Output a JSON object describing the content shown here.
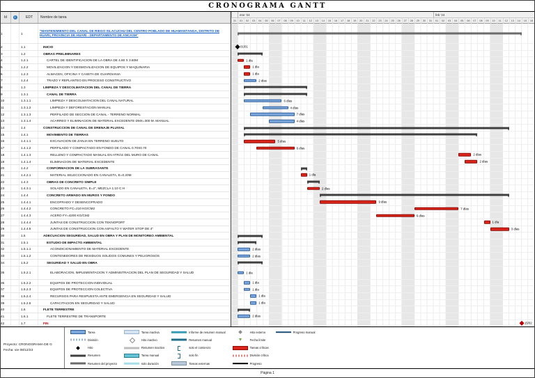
{
  "title": "CRONOGRAMA GANTT",
  "table": {
    "columns": {
      "id": "Id",
      "edt": "EDT",
      "name": "Nombre de tarea"
    }
  },
  "chart_data": {
    "type": "gantt",
    "title": "CRONOGRAMA GANTT",
    "timeline": {
      "total_days": 48,
      "months": [
        {
          "label": "",
          "start": 0,
          "span": 1
        },
        {
          "label": "ene '24",
          "start": 1,
          "span": 31
        },
        {
          "label": "feb '24",
          "start": 32,
          "span": 16
        }
      ],
      "day_numbers": [
        "31",
        "01",
        "02",
        "03",
        "04",
        "05",
        "06",
        "07",
        "08",
        "09",
        "10",
        "11",
        "12",
        "13",
        "14",
        "15",
        "16",
        "17",
        "18",
        "19",
        "20",
        "21",
        "22",
        "23",
        "24",
        "25",
        "26",
        "27",
        "28",
        "29",
        "30",
        "31",
        "01",
        "02",
        "03",
        "04",
        "05",
        "06",
        "07",
        "08",
        "09",
        "10",
        "11",
        "12",
        "13",
        "14",
        "15",
        "16"
      ]
    },
    "colors": {
      "task": "#7ba7dc",
      "critical": "#dc241a",
      "summary": "#3f3f3f",
      "project": "#6b6b6b",
      "milestone": "#000000",
      "critical_milestone": "#c00000",
      "weekend": "#e7e7e7"
    },
    "tasks": [
      {
        "id": 1,
        "edt": "1",
        "name": "\"MANTENIMIENTO DEL CANAL DE RIEGO ISLACUCHU DEL CENTRO POBLADO DE HUAMANTANGA, DISTRITO DE HUARI, PROVINCIA DE HUARI - DEPARTAMENTO DE ANCASH\"",
        "type": "project",
        "level": 0,
        "start": 1,
        "dur": 45,
        "label": "",
        "lines": 3
      },
      {
        "id": 2,
        "edt": "1.1",
        "name": "INICIO",
        "type": "milestone",
        "level": 1,
        "start": 1,
        "dur": 0,
        "label": "01/01"
      },
      {
        "id": 3,
        "edt": "1.2",
        "name": "OBRAS PRELIMINARES",
        "type": "summary",
        "level": 1,
        "start": 1,
        "dur": 4,
        "label": ""
      },
      {
        "id": 4,
        "edt": "1.2.1",
        "name": "CARTEL DE IDENTIFICACION DE LA OBRA DE 4.80 X 3.60M",
        "type": "critical",
        "level": 2,
        "start": 1,
        "dur": 1,
        "label": "1 día"
      },
      {
        "id": 5,
        "edt": "1.2.2",
        "name": "MOVILIZACION Y DESMOVILIZACION DE EQUIPOS Y MAQUINARIA",
        "type": "critical",
        "level": 2,
        "start": 2,
        "dur": 1,
        "label": "1 día"
      },
      {
        "id": 6,
        "edt": "1.2.3",
        "name": "ALMACEN, OFICINA Y CASETA DE GUARDIANIA",
        "type": "critical",
        "level": 2,
        "start": 2,
        "dur": 1,
        "label": "1 día"
      },
      {
        "id": 7,
        "edt": "1.2.4",
        "name": "TRAZO Y REPLANTEO EN PROCESO CONSTRUCTIVO",
        "type": "task",
        "level": 2,
        "start": 2,
        "dur": 2,
        "label": "2 días"
      },
      {
        "id": 8,
        "edt": "1.3",
        "name": "LIMPIEZA Y DESCOLMATACION DEL CANAL DE TIERRA",
        "type": "summary",
        "level": 1,
        "start": 2,
        "dur": 10,
        "label": ""
      },
      {
        "id": 9,
        "edt": "1.3.1",
        "name": "CANAL DE TIERRA",
        "type": "summary",
        "level": 2,
        "start": 2,
        "dur": 10,
        "label": ""
      },
      {
        "id": 10,
        "edt": "1.3.1.1",
        "name": "LIMPIEZA Y DESCOLMATACION DEL CANAL NATURAL",
        "type": "task",
        "level": 3,
        "start": 2,
        "dur": 6,
        "label": "6 días"
      },
      {
        "id": 11,
        "edt": "1.3.1.2",
        "name": "LIMPIEZA Y DEFORESTACION MANUAL",
        "type": "task",
        "level": 3,
        "start": 5,
        "dur": 4,
        "label": "4 días"
      },
      {
        "id": 12,
        "edt": "1.3.1.3",
        "name": "PERFILADO DE SECCION DE CANAL - TERRENO NORMAL",
        "type": "task",
        "level": 3,
        "start": 3,
        "dur": 7,
        "label": "7 días"
      },
      {
        "id": 13,
        "edt": "1.3.1.4",
        "name": "ACARREO Y ELIMINACION DE MATERIAL EXCEDENTE DMX=300 M. MANUAL",
        "type": "task",
        "level": 3,
        "start": 6,
        "dur": 4,
        "label": "4 días"
      },
      {
        "id": 14,
        "edt": "1.4",
        "name": "CONSTRUCCION DE CANAL DE DRENAJE PLUVIAL",
        "type": "summary",
        "level": 1,
        "start": 2,
        "dur": 42,
        "label": ""
      },
      {
        "id": 15,
        "edt": "1.4.1",
        "name": "MOVIMIENTO DE TIERRAS",
        "type": "summary",
        "level": 2,
        "start": 2,
        "dur": 37,
        "label": ""
      },
      {
        "id": 16,
        "edt": "1.4.1.1",
        "name": "EXCAVACION DE ZANJA EN TERRENO SUELTO",
        "type": "critical",
        "level": 3,
        "start": 2,
        "dur": 5,
        "label": "5 días"
      },
      {
        "id": 17,
        "edt": "1.4.1.2",
        "name": "PERFILADO Y COMPACTADO EN FONDO DE CANAL 0.70X0.70",
        "type": "critical",
        "level": 3,
        "start": 4,
        "dur": 6,
        "label": "6 días"
      },
      {
        "id": 18,
        "edt": "1.4.1.3",
        "name": "RELLENO Y COMPACTADO MANUAL EN ATRÁS DEL MURO DE CANAL",
        "type": "critical",
        "level": 3,
        "start": 36,
        "dur": 2,
        "label": "2 días"
      },
      {
        "id": 19,
        "edt": "1.4.1.4",
        "name": "ELIMINACION DE MATERIAL EXCEDENTE",
        "type": "critical",
        "level": 3,
        "start": 37,
        "dur": 2,
        "label": "2 días"
      },
      {
        "id": 20,
        "edt": "1.4.2",
        "name": "CONFORMACION DE LA SUBRASANTE",
        "type": "summary",
        "level": 2,
        "start": 11,
        "dur": 1,
        "label": ""
      },
      {
        "id": 21,
        "edt": "1.4.2.1",
        "name": "MATERIAL SELECCIONADO EN CANALETA, E=0.20M",
        "type": "critical",
        "level": 3,
        "start": 11,
        "dur": 1,
        "label": "1 día"
      },
      {
        "id": 22,
        "edt": "1.4.3",
        "name": "OBRAS DE CONCRETO SIMPLE",
        "type": "summary",
        "level": 2,
        "start": 12,
        "dur": 2,
        "label": ""
      },
      {
        "id": 23,
        "edt": "1.4.3.1",
        "name": "SOLADO EN CANALETA, E=2\", MEZCLA 1:10 C:H",
        "type": "critical",
        "level": 3,
        "start": 12,
        "dur": 2,
        "label": "2 días"
      },
      {
        "id": 24,
        "edt": "1.4.4",
        "name": "CONCRETO ARMADO EN MUROS Y FONDO",
        "type": "summary",
        "level": 2,
        "start": 14,
        "dur": 30,
        "label": ""
      },
      {
        "id": 25,
        "edt": "1.4.4.1",
        "name": "ENCOFRADO Y DESENCOFRADO",
        "type": "critical",
        "level": 3,
        "start": 14,
        "dur": 9,
        "label": "9 días"
      },
      {
        "id": 26,
        "edt": "1.4.4.2",
        "name": "CONCRETO FC=210 KG/CM2",
        "type": "critical",
        "level": 3,
        "start": 29,
        "dur": 7,
        "label": "7 días"
      },
      {
        "id": 27,
        "edt": "1.4.4.3",
        "name": "ACERO FY=4200 KG/CM2",
        "type": "critical",
        "level": 3,
        "start": 23,
        "dur": 6,
        "label": "6 días"
      },
      {
        "id": 28,
        "edt": "1.4.4.4",
        "name": "JUNTAS DE CONSTRUCCION CON TEKNOPORT",
        "type": "critical",
        "level": 3,
        "start": 40,
        "dur": 1,
        "label": "1 día"
      },
      {
        "id": 29,
        "edt": "1.4.4.5",
        "name": "JUNTAS DE CONSTRUCCION CON ASFALTO Y WATER STOP DE 4\"",
        "type": "critical",
        "level": 3,
        "start": 41,
        "dur": 3,
        "label": "3 días"
      },
      {
        "id": 30,
        "edt": "1.5",
        "name": "ADECUACION SEGURIDAD, SALUD EN OBRA Y PLAN DE MONITOREO AMBIENTAL",
        "type": "summary",
        "level": 1,
        "start": 1,
        "dur": 4,
        "label": ""
      },
      {
        "id": 31,
        "edt": "1.5.1",
        "name": "ESTUDIO DE IMPACTO AMBIENTAL",
        "type": "summary",
        "level": 2,
        "start": 1,
        "dur": 3,
        "label": ""
      },
      {
        "id": 32,
        "edt": "1.5.1.1",
        "name": "ACONDICIONAMIENTO DE MATERIAL EXCEDENTE",
        "type": "task",
        "level": 3,
        "start": 1,
        "dur": 2,
        "label": "2 días"
      },
      {
        "id": 33,
        "edt": "1.5.1.2",
        "name": "CONTENEDORES DE RESIDUOS SOLIDOS COMUNES Y PELIGROSOS",
        "type": "task",
        "level": 3,
        "start": 1,
        "dur": 2,
        "label": "2 días"
      },
      {
        "id": 34,
        "edt": "1.5.2",
        "name": "SEGURIDAD Y SALUD EN OBRA",
        "type": "summary",
        "level": 2,
        "start": 1,
        "dur": 4,
        "label": ""
      },
      {
        "id": 35,
        "edt": "1.5.2.1",
        "name": "ELABORACION, IMPLEMENTACION Y ADMINISTRACION DEL PLAN DE SEGURIDAD Y SALUD",
        "type": "task",
        "level": 3,
        "start": 1,
        "dur": 1,
        "label": "1 día",
        "lines": 2
      },
      {
        "id": 36,
        "edt": "1.5.2.2",
        "name": "EQUIPOS DE PROTECCION INDIVIDUAL",
        "type": "task",
        "level": 3,
        "start": 2,
        "dur": 1,
        "label": "1 día"
      },
      {
        "id": 37,
        "edt": "1.5.2.3",
        "name": "EQUIPOS DE PROTECCION COLECTIVA",
        "type": "task",
        "level": 3,
        "start": 2,
        "dur": 1,
        "label": "1 día"
      },
      {
        "id": 38,
        "edt": "1.5.2.4",
        "name": "RECURSOS PARA RESPUESTA ANTE EMERGENCIA EN SEGURIDAD Y SALUD",
        "type": "task",
        "level": 3,
        "start": 3,
        "dur": 1,
        "label": "1 día"
      },
      {
        "id": 39,
        "edt": "1.5.2.5",
        "name": "CAPACITACION EN SEGURIDAD Y SALUD",
        "type": "task",
        "level": 3,
        "start": 3,
        "dur": 1,
        "label": "1 día"
      },
      {
        "id": 40,
        "edt": "1.6",
        "name": "FLETE TERRESTRE",
        "type": "summary",
        "level": 1,
        "start": 1,
        "dur": 2,
        "label": ""
      },
      {
        "id": 41,
        "edt": "1.6.1",
        "name": "FLETE TERRESTRE DE TRANSPORTE",
        "type": "task",
        "level": 2,
        "start": 1,
        "dur": 2,
        "label": "2 días"
      },
      {
        "id": 42,
        "edt": "1.7",
        "name": "FIN",
        "type": "critical-milestone",
        "level": 1,
        "start": 46,
        "dur": 0,
        "label": "15/02"
      }
    ]
  },
  "footer": {
    "project_label": "Proyecto: CRONOGRAMA DE G",
    "date_label": "Fecha: vie 08/12/23",
    "page_label": "Página 1",
    "legend_columns": [
      [
        {
          "swatch": "bar-task",
          "label": "Tarea"
        },
        {
          "swatch": "division",
          "label": "División"
        },
        {
          "swatch": "diamond",
          "label": "Hito"
        },
        {
          "swatch": "summary",
          "label": "Resumen"
        },
        {
          "swatch": "project",
          "label": "Resumen del proyecto"
        }
      ],
      [
        {
          "swatch": "bar-inactive",
          "label": "Tarea inactiva"
        },
        {
          "swatch": "diamond-hollow",
          "label": "Hito inactivo"
        },
        {
          "swatch": "summary-inactive",
          "label": "Resumen inactivo"
        },
        {
          "swatch": "bar-manual",
          "label": "Tarea manual"
        },
        {
          "swatch": "bar-duration",
          "label": "solo duración"
        }
      ],
      [
        {
          "swatch": "bar-rollup",
          "label": "Informe de resumen manual"
        },
        {
          "swatch": "summary-manual",
          "label": "Resumen manual"
        },
        {
          "swatch": "bracket-start",
          "label": "solo el comienzo"
        },
        {
          "swatch": "bracket-end",
          "label": "solo fin"
        },
        {
          "swatch": "bar-external",
          "label": "Tareas externas"
        }
      ],
      [
        {
          "swatch": "diamond-gray",
          "label": "Hito externo"
        },
        {
          "swatch": "deadline",
          "label": "Fecha límite"
        },
        {
          "swatch": "bar-critical",
          "label": "Tareas críticas"
        },
        {
          "swatch": "division-critical",
          "label": "División crítica"
        },
        {
          "swatch": "progress",
          "label": "Progreso"
        }
      ],
      [
        {
          "swatch": "progress-manual",
          "label": "Progreso manual"
        }
      ]
    ]
  }
}
